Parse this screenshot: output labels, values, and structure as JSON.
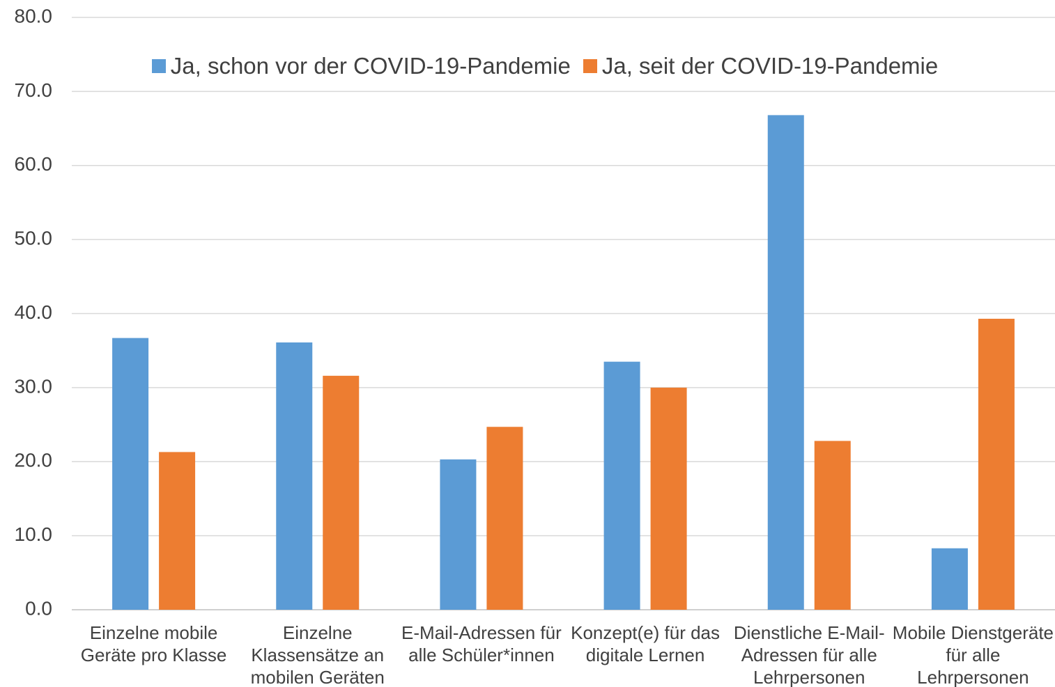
{
  "chart_data": {
    "type": "bar",
    "categories": [
      "Einzelne mobile Geräte pro Klasse",
      "Einzelne Klassensätze an mobilen Geräten",
      "E-Mail-Adressen für alle Schüler*innen",
      "Konzept(e) für das digitale Lernen",
      "Dienstliche E-Mail-Adressen für alle Lehrpersonen",
      "Mobile Dienstgeräte für alle Lehrpersonen"
    ],
    "series": [
      {
        "name": "Ja, schon vor der COVID-19-Pandemie",
        "color": "#5b9bd5",
        "values": [
          36.7,
          36.1,
          20.3,
          33.5,
          66.8,
          8.3
        ]
      },
      {
        "name": "Ja, seit der COVID-19-Pandemie",
        "color": "#ed7d31",
        "values": [
          21.3,
          31.6,
          24.7,
          30.0,
          22.8,
          39.3
        ]
      }
    ],
    "ylim": [
      0,
      80
    ],
    "yticks": [
      {
        "value": 0,
        "label": "0.0"
      },
      {
        "value": 10,
        "label": "10.0"
      },
      {
        "value": 20,
        "label": "20.0"
      },
      {
        "value": 30,
        "label": "30.0"
      },
      {
        "value": 40,
        "label": "40.0"
      },
      {
        "value": 50,
        "label": "50.0"
      },
      {
        "value": 60,
        "label": "60.0"
      },
      {
        "value": 70,
        "label": "70.0"
      },
      {
        "value": 80,
        "label": "80.0"
      }
    ],
    "grid": true,
    "legend": "top"
  }
}
